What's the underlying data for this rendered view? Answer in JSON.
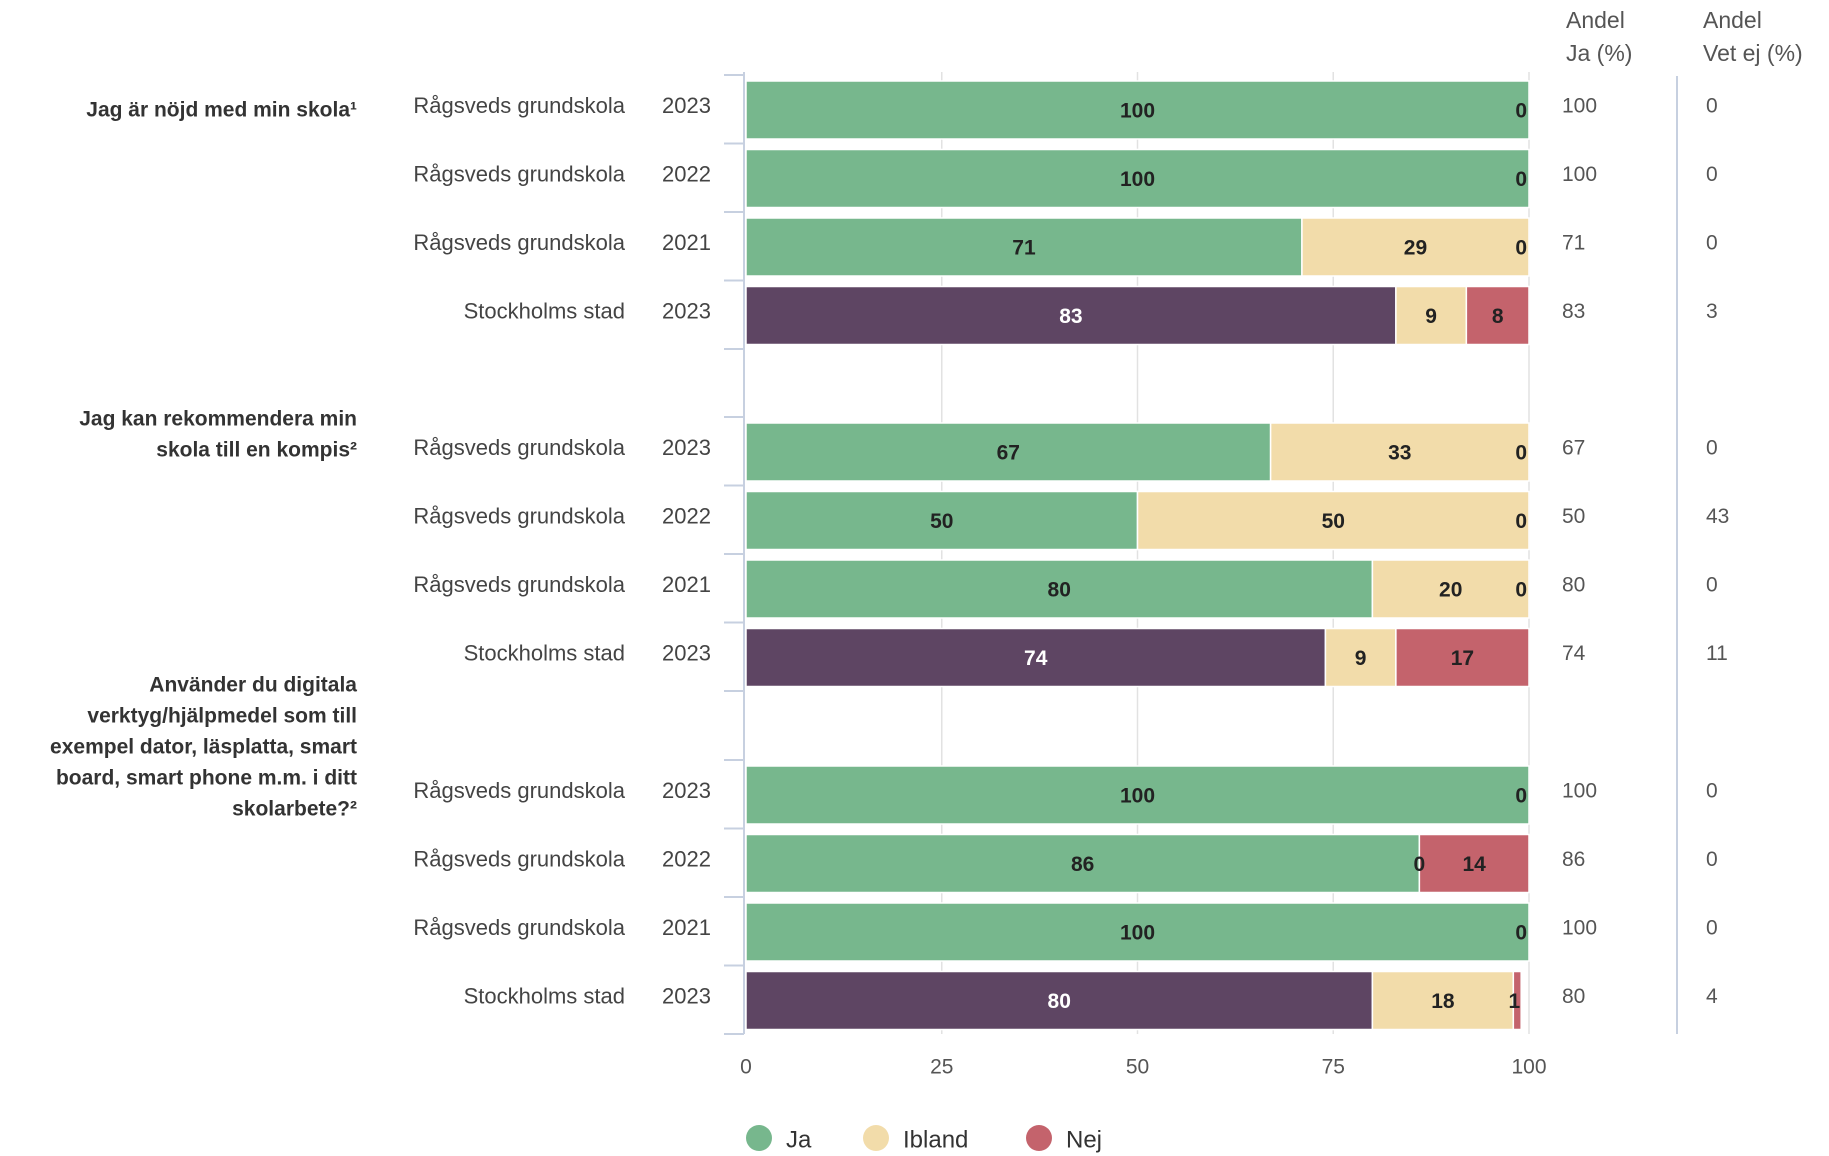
{
  "chart_data": {
    "type": "bar",
    "orientation": "horizontal",
    "stacked": true,
    "xlim": [
      0,
      100
    ],
    "xticks": [
      "0",
      "25",
      "50",
      "75",
      "100"
    ],
    "grid": true,
    "legend_position": "bottom",
    "colors": {
      "Ja": "#77b78d",
      "Ja_stad": "#5e4563",
      "Ibland": "#f2dcaa",
      "Nej": "#c4636c",
      "grid": "#e2e2e2",
      "axis": "#c7d0e0"
    },
    "legend": [
      {
        "key": "Ja",
        "label": "Ja"
      },
      {
        "key": "Ibland",
        "label": "Ibland"
      },
      {
        "key": "Nej",
        "label": "Nej"
      }
    ],
    "columns": [
      {
        "line1": "Andel",
        "line2": "Ja (%)"
      },
      {
        "line1": "Andel",
        "line2": "Vet ej (%)"
      }
    ],
    "groups": [
      {
        "label_lines": [
          "Jag är nöjd med min skola¹"
        ],
        "rows": [
          {
            "unit": "Rågsveds grundskola",
            "year": "2023",
            "stad": false,
            "values": [
              100,
              0,
              0
            ],
            "labels": [
              "100",
              "",
              "0"
            ],
            "andel_ja": "100",
            "andel_vetej": "0"
          },
          {
            "unit": "Rågsveds grundskola",
            "year": "2022",
            "stad": false,
            "values": [
              100,
              0,
              0
            ],
            "labels": [
              "100",
              "",
              "0"
            ],
            "andel_ja": "100",
            "andel_vetej": "0"
          },
          {
            "unit": "Rågsveds grundskola",
            "year": "2021",
            "stad": false,
            "values": [
              71,
              29,
              0
            ],
            "labels": [
              "71",
              "29",
              "0"
            ],
            "andel_ja": "71",
            "andel_vetej": "0"
          },
          {
            "unit": "Stockholms stad",
            "year": "2023",
            "stad": true,
            "values": [
              83,
              9,
              8
            ],
            "labels": [
              "83",
              "9",
              "8"
            ],
            "andel_ja": "83",
            "andel_vetej": "3"
          }
        ]
      },
      {
        "label_lines": [
          "Jag kan rekommendera min",
          "skola till en kompis²"
        ],
        "rows": [
          {
            "unit": "Rågsveds grundskola",
            "year": "2023",
            "stad": false,
            "values": [
              67,
              33,
              0
            ],
            "labels": [
              "67",
              "33",
              "0"
            ],
            "andel_ja": "67",
            "andel_vetej": "0"
          },
          {
            "unit": "Rågsveds grundskola",
            "year": "2022",
            "stad": false,
            "values": [
              50,
              50,
              0
            ],
            "labels": [
              "50",
              "50",
              "0"
            ],
            "andel_ja": "50",
            "andel_vetej": "43"
          },
          {
            "unit": "Rågsveds grundskola",
            "year": "2021",
            "stad": false,
            "values": [
              80,
              20,
              0
            ],
            "labels": [
              "80",
              "20",
              "0"
            ],
            "andel_ja": "80",
            "andel_vetej": "0"
          },
          {
            "unit": "Stockholms stad",
            "year": "2023",
            "stad": true,
            "values": [
              74,
              9,
              17
            ],
            "labels": [
              "74",
              "9",
              "17"
            ],
            "andel_ja": "74",
            "andel_vetej": "11"
          }
        ]
      },
      {
        "label_lines": [
          "Använder du digitala",
          "verktyg/hjälpmedel som till",
          "exempel dator, läsplatta, smart",
          "board, smart phone m.m. i ditt",
          "skolarbete?²"
        ],
        "rows": [
          {
            "unit": "Rågsveds grundskola",
            "year": "2023",
            "stad": false,
            "values": [
              100,
              0,
              0
            ],
            "labels": [
              "100",
              "",
              "0"
            ],
            "andel_ja": "100",
            "andel_vetej": "0"
          },
          {
            "unit": "Rågsveds grundskola",
            "year": "2022",
            "stad": false,
            "values": [
              86,
              0,
              14
            ],
            "labels": [
              "86",
              "0",
              "14"
            ],
            "andel_ja": "86",
            "andel_vetej": "0"
          },
          {
            "unit": "Rågsveds grundskola",
            "year": "2021",
            "stad": false,
            "values": [
              100,
              0,
              0
            ],
            "labels": [
              "100",
              "",
              "0"
            ],
            "andel_ja": "100",
            "andel_vetej": "0"
          },
          {
            "unit": "Stockholms stad",
            "year": "2023",
            "stad": true,
            "values": [
              80,
              18,
              1
            ],
            "labels": [
              "80",
              "18",
              "1"
            ],
            "andel_ja": "80",
            "andel_vetej": "4"
          }
        ]
      }
    ]
  }
}
